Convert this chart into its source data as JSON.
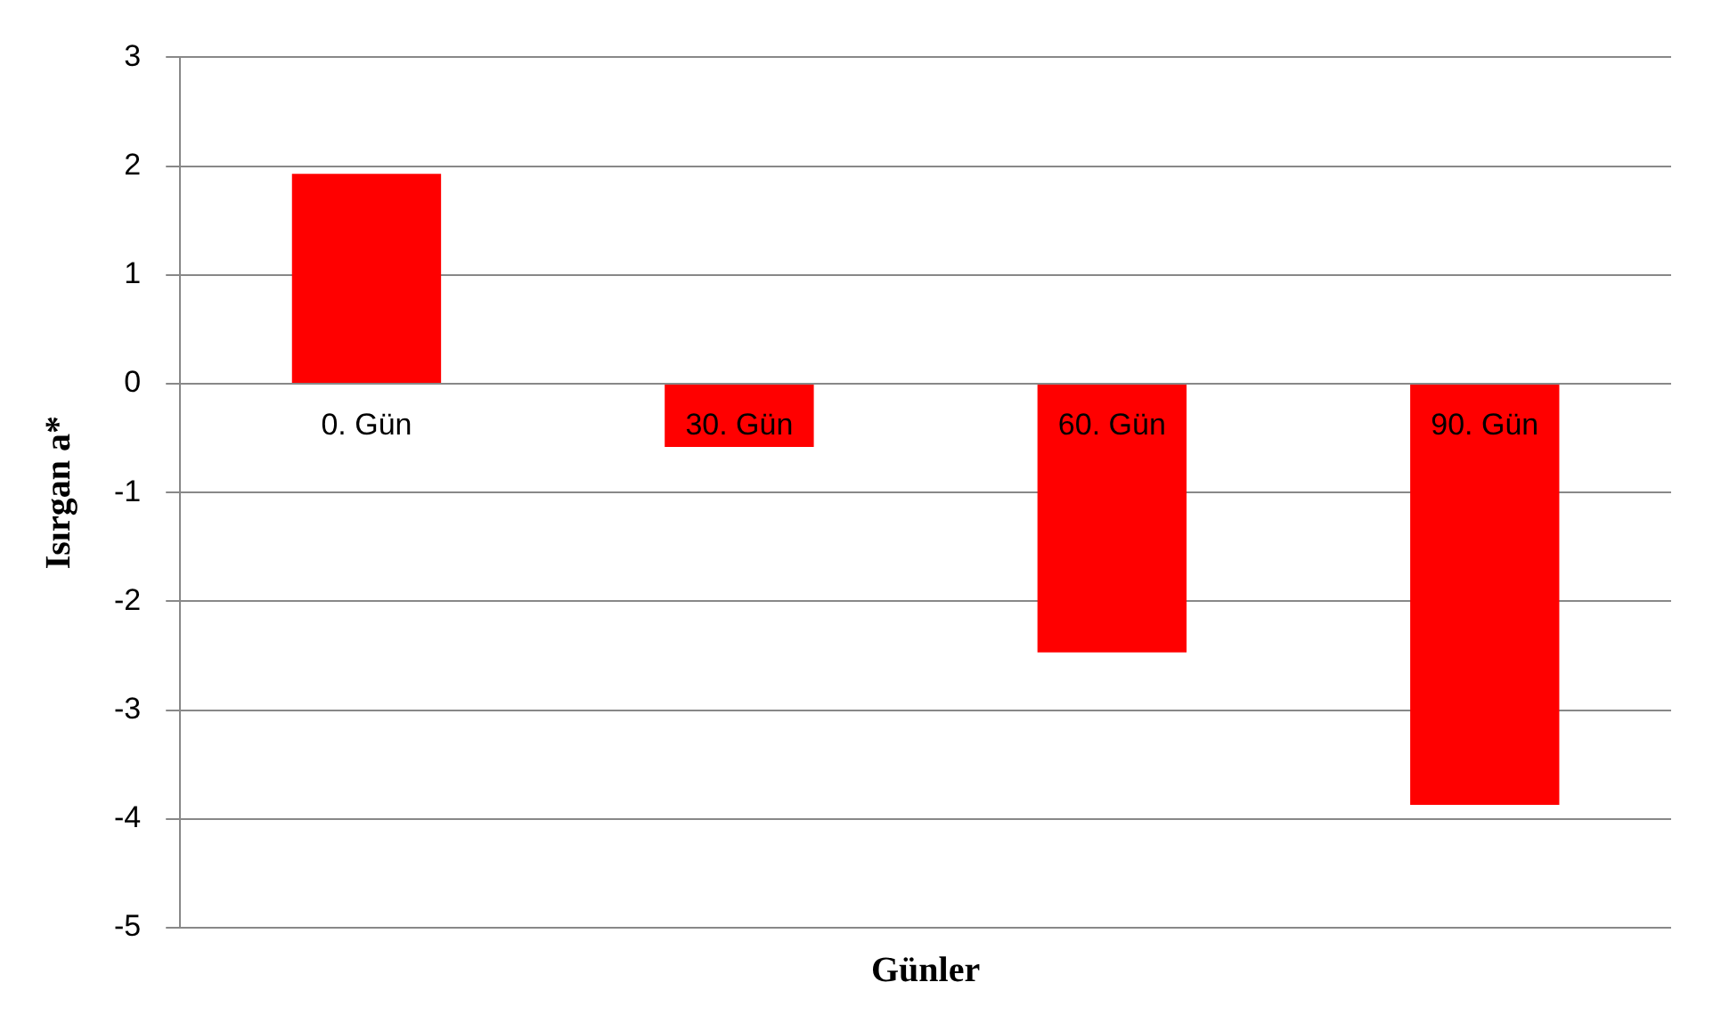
{
  "chart_data": {
    "type": "bar",
    "xlabel": "Günler",
    "ylabel": "Isırgan a*",
    "categories": [
      "0. Gün",
      "30. Gün",
      "60. Gün",
      "90. Gün"
    ],
    "values": [
      1.93,
      -0.58,
      -2.47,
      -3.87
    ],
    "color": "#ff0000",
    "ylim": [
      -5,
      3
    ],
    "yticks": [
      -5,
      -4,
      -3,
      -2,
      -1,
      0,
      1,
      2,
      3
    ],
    "grid": "y",
    "legend": false
  }
}
